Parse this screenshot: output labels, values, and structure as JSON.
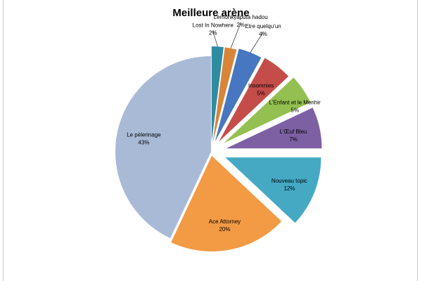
{
  "chart_data": {
    "type": "pie",
    "title": "Meilleure arène",
    "start_angle_deg": 90,
    "direction": "clockwise",
    "exploded": true,
    "slices": [
      {
        "label": "Lost In Nowhere",
        "value": 2,
        "pct_label": "2%",
        "color": "#2f8ca0"
      },
      {
        "label": "Lemonkyaputa hadou",
        "value": 2,
        "pct_label": "2%",
        "color": "#d8853a"
      },
      {
        "label": "Etre quelqu'un",
        "value": 4,
        "pct_label": "4%",
        "color": "#4677c0"
      },
      {
        "label": "Insomnies",
        "value": 5,
        "pct_label": "5%",
        "color": "#c44d4a"
      },
      {
        "label": "L'Enfant et le Menhir",
        "value": 5,
        "pct_label": "5%",
        "color": "#93c050"
      },
      {
        "label": "L'Œuf Bleu",
        "value": 7,
        "pct_label": "7%",
        "color": "#7d60a4"
      },
      {
        "label": "Nouveau topic",
        "value": 12,
        "pct_label": "12%",
        "color": "#45a9c4"
      },
      {
        "label": "Ace Attorney",
        "value": 20,
        "pct_label": "20%",
        "color": "#f39a44"
      },
      {
        "label": "Le pèlerinage",
        "value": 43,
        "pct_label": "43%",
        "color": "#a9bad7"
      }
    ]
  }
}
